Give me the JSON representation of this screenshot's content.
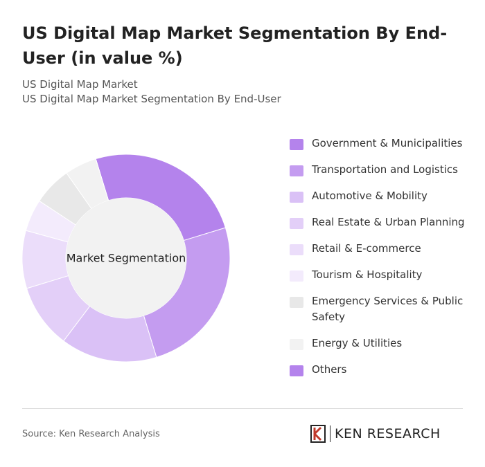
{
  "chart_data": {
    "type": "donut",
    "title": "US Digital Map Market Segmentation By End-User (in value %)",
    "subtitle": [
      "US Digital Map Market",
      "US Digital Map Market Segmentation By End-User"
    ],
    "center_label": "Market Segmentation",
    "categories": [
      "Government & Municipalities",
      "Transportation and Logistics",
      "Automotive & Mobility",
      "Real Estate & Urban Planning",
      "Retail & E-commerce",
      "Tourism & Hospitality",
      "Emergency Services & Public Safety",
      "Energy & Utilities",
      "Others"
    ],
    "values": [
      25,
      25,
      15,
      10,
      9,
      5,
      6,
      5,
      0
    ],
    "colors": [
      "#b483ec",
      "#c49cf0",
      "#dac1f6",
      "#e3cff8",
      "#ebddfa",
      "#f3ebfc",
      "#e8e8e8",
      "#f2f2f2",
      "#b483ec"
    ]
  },
  "source": "Source: Ken Research Analysis",
  "logo": "KEN RESEARCH"
}
